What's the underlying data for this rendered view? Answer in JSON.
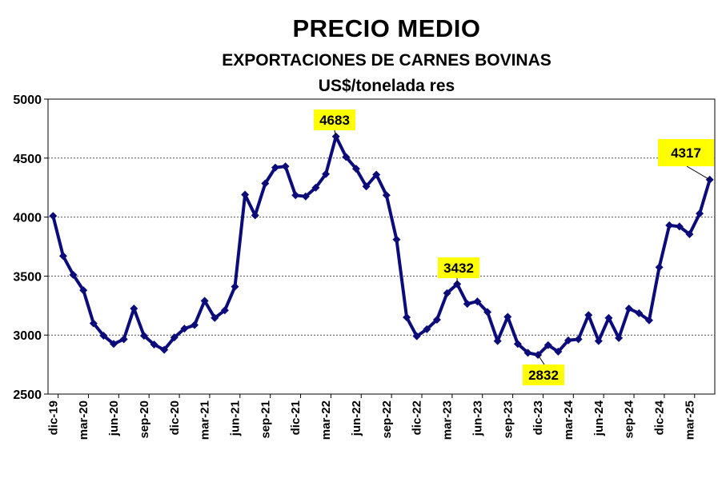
{
  "chart_data": {
    "type": "line",
    "title": "PRECIO MEDIO",
    "subtitle": "EXPORTACIONES DE CARNES BOVINAS",
    "unit_label": "US$/tonelada res",
    "xlabel": "",
    "ylabel": "",
    "ylim": [
      2500,
      5000
    ],
    "yticks": [
      2500,
      3000,
      3500,
      4000,
      4500,
      5000
    ],
    "grid": true,
    "line_color": "#0b0b7a",
    "annotation_bg": "#ffff00",
    "x_tick_labels": [
      "dic-19",
      "mar-20",
      "jun-20",
      "sep-20",
      "dic-20",
      "mar-21",
      "jun-21",
      "sep-21",
      "dic-21",
      "mar-22",
      "jun-22",
      "sep-22",
      "dic-22",
      "mar-23",
      "jun-23",
      "sep-23",
      "dic-23",
      "mar-24",
      "jun-24",
      "sep-24",
      "dic-24",
      "mar-25"
    ],
    "series": [
      {
        "values": [
          4010,
          3670,
          3510,
          3380,
          3100,
          2995,
          2925,
          2965,
          3225,
          2995,
          2920,
          2875,
          2980,
          3055,
          3085,
          3290,
          3145,
          3210,
          3410,
          4190,
          4015,
          4285,
          4420,
          4430,
          4185,
          4175,
          4250,
          4365,
          4683,
          4510,
          4410,
          4260,
          4360,
          4185,
          3810,
          3150,
          2990,
          3050,
          3130,
          3355,
          3432,
          3265,
          3285,
          3195,
          2950,
          3155,
          2925,
          2850,
          2832,
          2915,
          2860,
          2955,
          2965,
          3170,
          2950,
          3145,
          2975,
          3225,
          3185,
          3125,
          3575,
          3930,
          3920,
          3855,
          4030,
          4317
        ]
      }
    ],
    "annotations": [
      {
        "index": 28,
        "text": "4683"
      },
      {
        "index": 40,
        "text": "3432"
      },
      {
        "index": 48,
        "text": "2832"
      },
      {
        "index": 65,
        "text": "4317"
      }
    ]
  }
}
